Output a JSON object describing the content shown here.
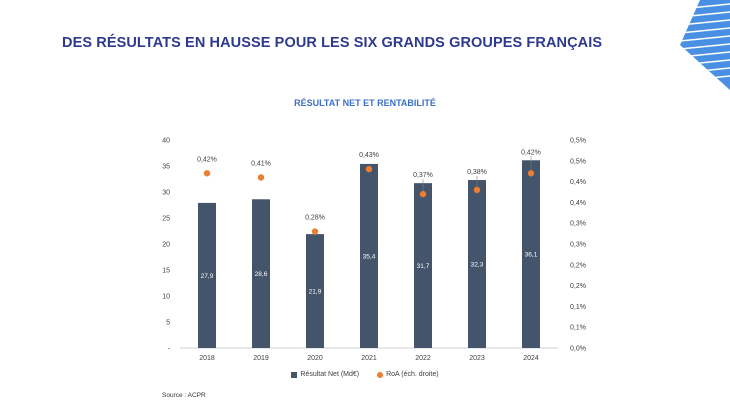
{
  "slide": {
    "title": "DES RÉSULTATS EN HAUSSE POUR LES SIX GRANDS GROUPES FRANÇAIS",
    "source": "Source : ACPR"
  },
  "colors": {
    "bar": "#44546a",
    "dot": "#ed7d31",
    "title": "#2e3a8c",
    "chart_title": "#3b6fc9",
    "logo": "#4a90e2"
  },
  "chart_data": {
    "type": "bar",
    "title": "RÉSULTAT NET ET RENTABILITÉ",
    "categories": [
      "2018",
      "2019",
      "2020",
      "2021",
      "2022",
      "2023",
      "2024"
    ],
    "series": [
      {
        "name": "Résultat Net (Md€)",
        "type": "bar",
        "axis": "left",
        "values": [
          27.9,
          28.6,
          21.9,
          35.4,
          31.7,
          32.3,
          36.1
        ],
        "labels": [
          "27,9",
          "28,6",
          "21,9",
          "35,4",
          "31,7",
          "32,3",
          "36,1"
        ]
      },
      {
        "name": "RoA (éch. droite)",
        "type": "scatter",
        "axis": "right",
        "values": [
          0.42,
          0.41,
          0.28,
          0.43,
          0.37,
          0.38,
          0.42
        ],
        "labels": [
          "0,42%",
          "0,41%",
          "0,28%",
          "0,43%",
          "0,37%",
          "0,38%",
          "0,42%"
        ]
      }
    ],
    "y_left": {
      "ylim": [
        0,
        40
      ],
      "ticks": [
        "-",
        "5",
        "10",
        "15",
        "20",
        "25",
        "30",
        "35",
        "40"
      ]
    },
    "y_right": {
      "ylim": [
        0,
        0.5
      ],
      "ticks": [
        "0,0%",
        "0,1%",
        "0,1%",
        "0,2%",
        "0,2%",
        "0,3%",
        "0,3%",
        "0,4%",
        "0,4%",
        "0,5%",
        "0,5%"
      ]
    },
    "legend": [
      "Résultat Net (Md€)",
      "RoA (éch. droite)"
    ],
    "legend_position": "bottom"
  }
}
